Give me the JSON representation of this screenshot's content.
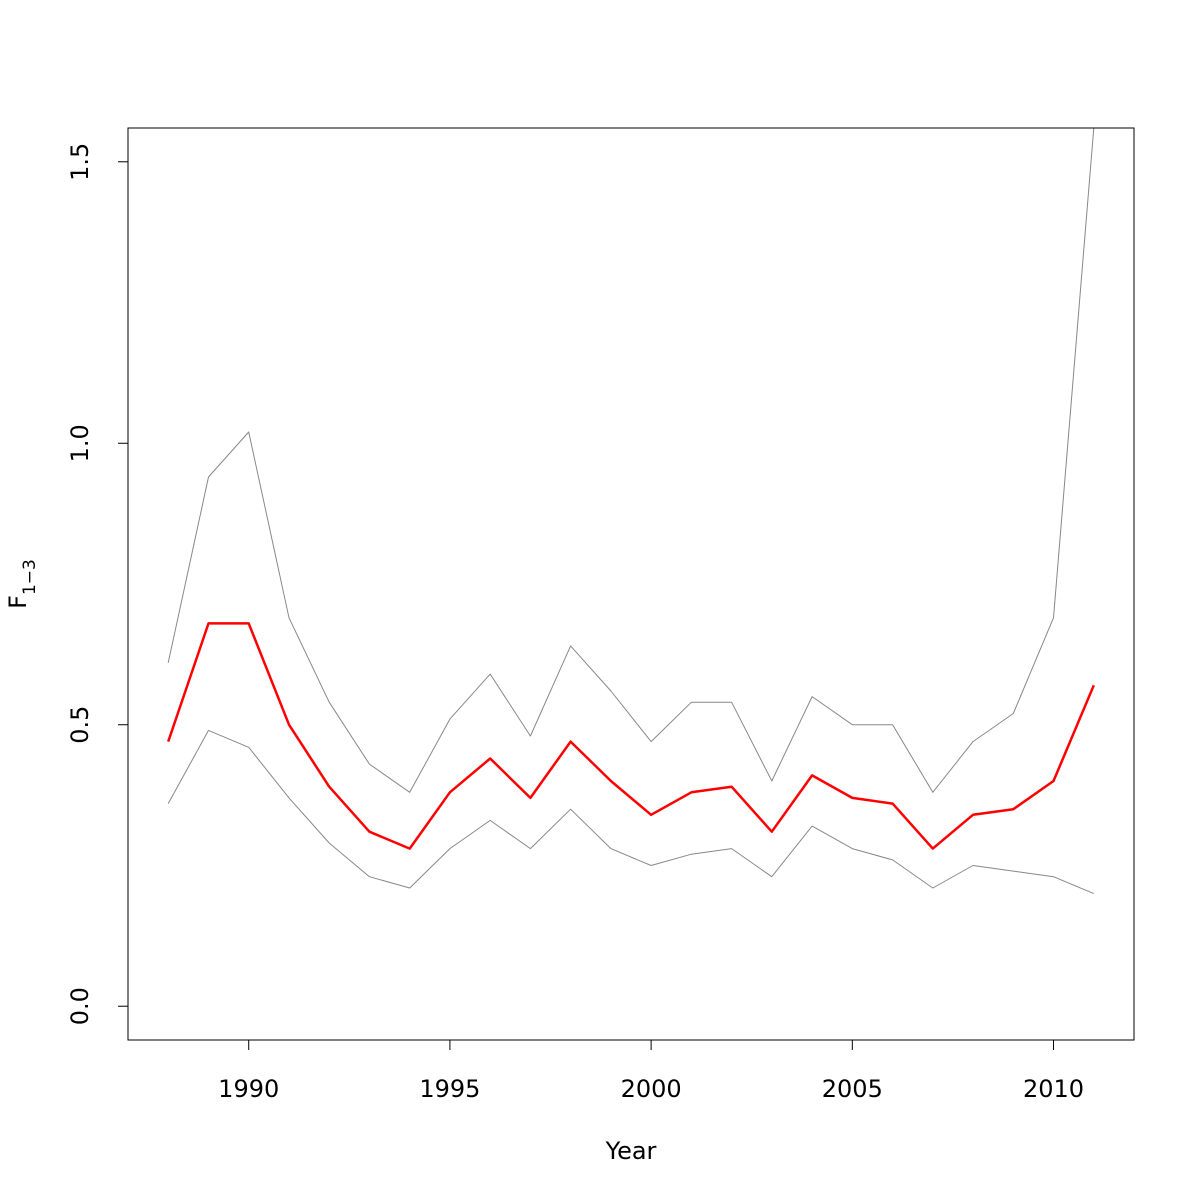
{
  "chart_data": {
    "type": "line",
    "title": "",
    "xlabel": "Year",
    "ylabel": {
      "main": "F",
      "subscript": "1−3"
    },
    "xlim": [
      1987,
      2012
    ],
    "ylim": [
      -0.06,
      1.56
    ],
    "xticks": [
      1990,
      1995,
      2000,
      2005,
      2010
    ],
    "yticks": [
      0.0,
      0.5,
      1.0,
      1.5
    ],
    "ytick_labels": [
      "0.0",
      "0.5",
      "1.0",
      "1.5"
    ],
    "grid": false,
    "x": [
      1988,
      1989,
      1990,
      1991,
      1992,
      1993,
      1994,
      1995,
      1996,
      1997,
      1998,
      1999,
      2000,
      2001,
      2002,
      2003,
      2004,
      2005,
      2006,
      2007,
      2008,
      2009,
      2010,
      2011
    ],
    "series": [
      {
        "role": "upper",
        "color": "#888888",
        "values": [
          0.61,
          0.94,
          1.02,
          0.69,
          0.54,
          0.43,
          0.38,
          0.51,
          0.59,
          0.48,
          0.64,
          0.56,
          0.47,
          0.54,
          0.54,
          0.4,
          0.55,
          0.5,
          0.5,
          0.38,
          0.47,
          0.52,
          0.69,
          1.56
        ]
      },
      {
        "role": "estimate",
        "color": "#ff0000",
        "values": [
          0.47,
          0.68,
          0.68,
          0.5,
          0.39,
          0.31,
          0.28,
          0.38,
          0.44,
          0.37,
          0.47,
          0.4,
          0.34,
          0.38,
          0.39,
          0.31,
          0.41,
          0.37,
          0.36,
          0.28,
          0.34,
          0.35,
          0.4,
          0.57
        ]
      },
      {
        "role": "lower",
        "color": "#888888",
        "values": [
          0.36,
          0.49,
          0.46,
          0.37,
          0.29,
          0.23,
          0.21,
          0.28,
          0.33,
          0.28,
          0.35,
          0.28,
          0.25,
          0.27,
          0.28,
          0.23,
          0.32,
          0.28,
          0.26,
          0.21,
          0.25,
          0.24,
          0.23,
          0.2
        ]
      }
    ]
  }
}
